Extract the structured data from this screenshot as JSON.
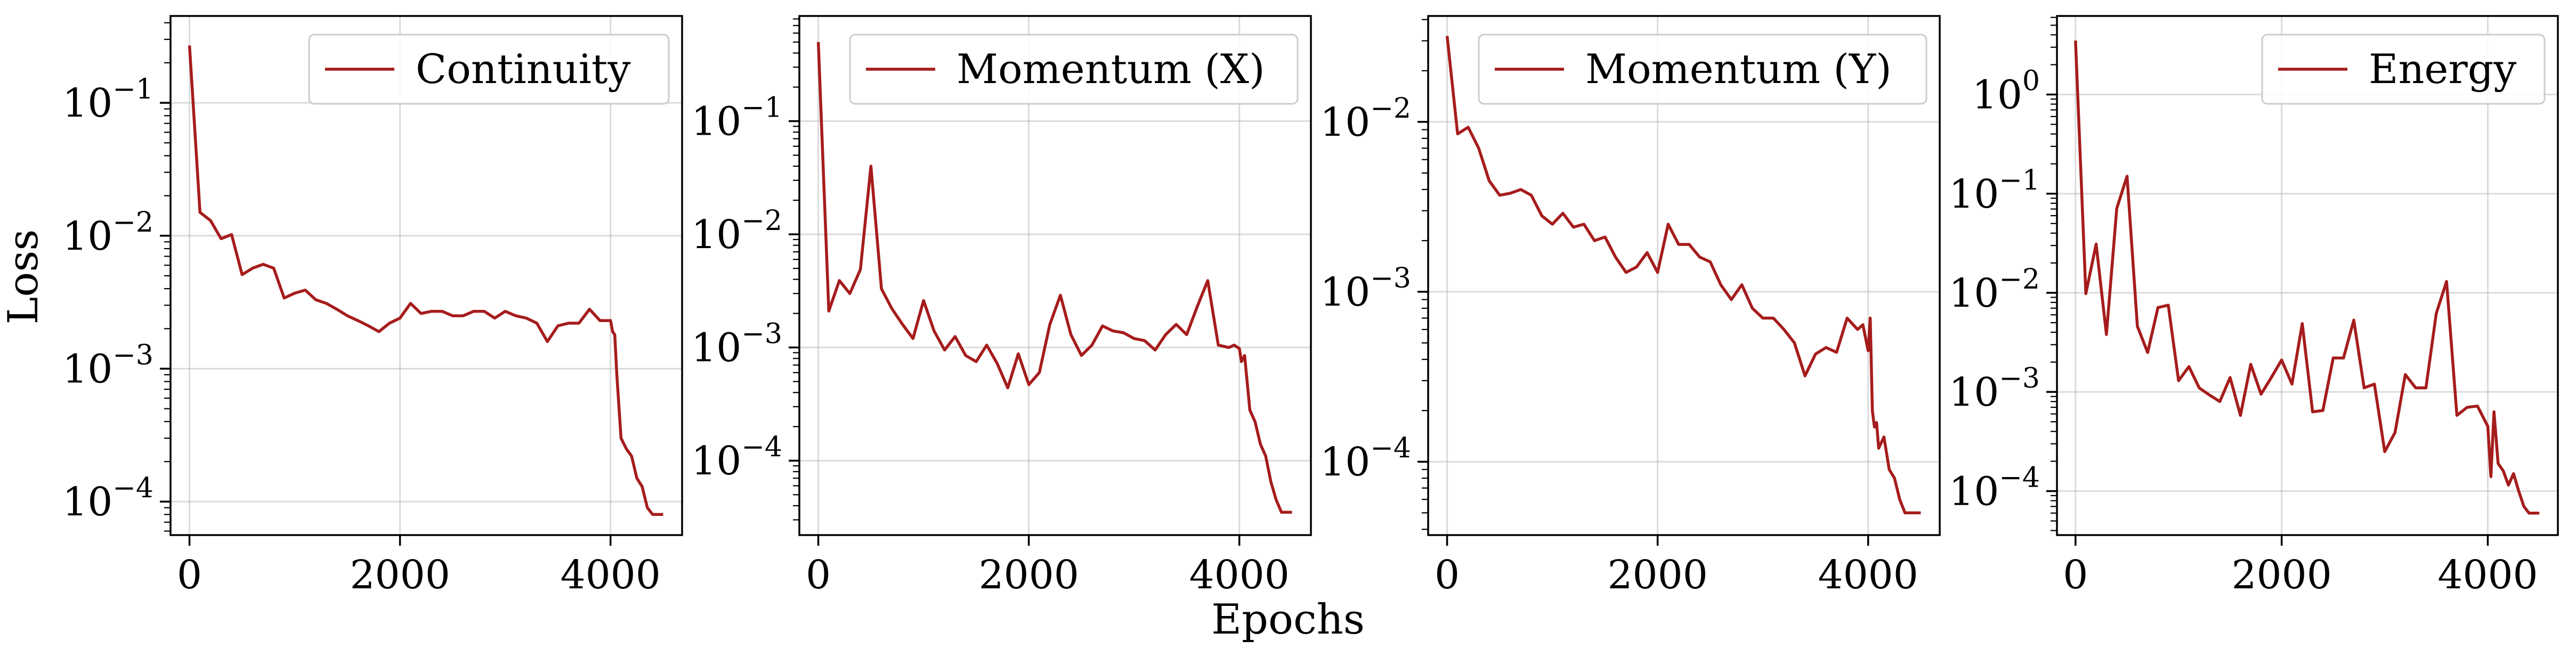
{
  "figure": {
    "xlabel": "Epochs",
    "ylabel": "Loss",
    "line_color": "#a61c1c"
  },
  "chart_data": [
    {
      "type": "line",
      "xscale": "linear",
      "yscale": "log",
      "xlim": [
        -180,
        4680
      ],
      "ylim": [
        5.6e-05,
        0.45
      ],
      "xticks": [
        0,
        2000,
        4000
      ],
      "yticks": [
        0.0001,
        0.001,
        0.01,
        0.1
      ],
      "ytick_labels": [
        [
          "10",
          "−4"
        ],
        [
          "10",
          "−3"
        ],
        [
          "10",
          "−2"
        ],
        [
          "10",
          "−1"
        ]
      ],
      "grid": true,
      "legend_position": "top-right",
      "series": [
        {
          "name": "Continuity",
          "x": [
            0,
            100,
            200,
            300,
            400,
            500,
            600,
            700,
            800,
            900,
            1000,
            1100,
            1200,
            1300,
            1400,
            1500,
            1600,
            1700,
            1800,
            1900,
            2000,
            2100,
            2200,
            2300,
            2400,
            2500,
            2600,
            2700,
            2800,
            2900,
            3000,
            3100,
            3200,
            3300,
            3400,
            3500,
            3600,
            3700,
            3800,
            3900,
            3950,
            4000,
            4020,
            4040,
            4060,
            4100,
            4150,
            4200,
            4250,
            4300,
            4350,
            4400,
            4500
          ],
          "y": [
            0.27,
            0.015,
            0.013,
            0.0095,
            0.0102,
            0.0051,
            0.0057,
            0.0061,
            0.0057,
            0.0034,
            0.0037,
            0.0039,
            0.0033,
            0.0031,
            0.0028,
            0.0025,
            0.0023,
            0.0021,
            0.0019,
            0.0022,
            0.0024,
            0.0031,
            0.0026,
            0.0027,
            0.0027,
            0.0025,
            0.0025,
            0.0027,
            0.0027,
            0.0024,
            0.0027,
            0.0025,
            0.0024,
            0.0022,
            0.0016,
            0.0021,
            0.0022,
            0.0022,
            0.0028,
            0.0023,
            0.0023,
            0.0023,
            0.0019,
            0.0018,
            0.0009,
            0.0003,
            0.00025,
            0.00022,
            0.00015,
            0.00013,
            9e-05,
            8e-05,
            8e-05
          ]
        }
      ]
    },
    {
      "type": "line",
      "xscale": "linear",
      "yscale": "log",
      "xlim": [
        -180,
        4680
      ],
      "ylim": [
        2.2e-05,
        0.85
      ],
      "xticks": [
        0,
        2000,
        4000
      ],
      "yticks": [
        0.0001,
        0.001,
        0.01,
        0.1
      ],
      "ytick_labels": [
        [
          "10",
          "−4"
        ],
        [
          "10",
          "−3"
        ],
        [
          "10",
          "−2"
        ],
        [
          "10",
          "−1"
        ]
      ],
      "grid": true,
      "legend_position": "top-right",
      "series": [
        {
          "name": "Momentum (X)",
          "x": [
            0,
            100,
            200,
            300,
            400,
            500,
            600,
            700,
            800,
            900,
            1000,
            1100,
            1200,
            1300,
            1400,
            1500,
            1600,
            1700,
            1800,
            1900,
            2000,
            2100,
            2200,
            2300,
            2400,
            2500,
            2600,
            2700,
            2800,
            2900,
            3000,
            3100,
            3200,
            3300,
            3400,
            3500,
            3600,
            3700,
            3800,
            3900,
            3950,
            4000,
            4020,
            4050,
            4100,
            4150,
            4200,
            4250,
            4300,
            4350,
            4400,
            4500
          ],
          "y": [
            0.5,
            0.0021,
            0.0039,
            0.003,
            0.0049,
            0.04,
            0.0033,
            0.0022,
            0.0016,
            0.0012,
            0.0026,
            0.0014,
            0.00095,
            0.00125,
            0.00085,
            0.00075,
            0.00105,
            0.00072,
            0.00044,
            0.00088,
            0.00047,
            0.0006,
            0.0016,
            0.0029,
            0.0013,
            0.00085,
            0.00105,
            0.00155,
            0.0014,
            0.00135,
            0.0012,
            0.00115,
            0.00095,
            0.0013,
            0.0016,
            0.0013,
            0.0023,
            0.0039,
            0.00105,
            0.001,
            0.00105,
            0.00098,
            0.00075,
            0.00085,
            0.00028,
            0.00022,
            0.00014,
            0.00011,
            6.5e-05,
            4.5e-05,
            3.5e-05,
            3.5e-05
          ]
        }
      ]
    },
    {
      "type": "line",
      "xscale": "linear",
      "yscale": "log",
      "xlim": [
        -180,
        4680
      ],
      "ylim": [
        3.7e-05,
        0.042
      ],
      "xticks": [
        0,
        2000,
        4000
      ],
      "yticks": [
        0.0001,
        0.001,
        0.01
      ],
      "ytick_labels": [
        [
          "10",
          "−4"
        ],
        [
          "10",
          "−3"
        ],
        [
          "10",
          "−2"
        ]
      ],
      "grid": true,
      "legend_position": "top-right",
      "series": [
        {
          "name": "Momentum (Y)",
          "x": [
            0,
            100,
            200,
            300,
            400,
            500,
            600,
            700,
            800,
            900,
            1000,
            1100,
            1200,
            1300,
            1400,
            1500,
            1600,
            1700,
            1800,
            1900,
            2000,
            2100,
            2200,
            2300,
            2400,
            2500,
            2600,
            2700,
            2800,
            2900,
            3000,
            3100,
            3200,
            3300,
            3400,
            3500,
            3600,
            3700,
            3800,
            3900,
            3950,
            4000,
            4020,
            4040,
            4060,
            4080,
            4100,
            4150,
            4200,
            4250,
            4300,
            4350,
            4400,
            4500
          ],
          "y": [
            0.032,
            0.0085,
            0.0093,
            0.007,
            0.0045,
            0.0037,
            0.0038,
            0.004,
            0.0037,
            0.0028,
            0.0025,
            0.0029,
            0.0024,
            0.0025,
            0.002,
            0.0021,
            0.0016,
            0.0013,
            0.0014,
            0.0017,
            0.0013,
            0.0025,
            0.0019,
            0.0019,
            0.0016,
            0.0015,
            0.0011,
            0.0009,
            0.0011,
            0.0008,
            0.0007,
            0.0007,
            0.0006,
            0.0005,
            0.00032,
            0.00043,
            0.00047,
            0.00044,
            0.0007,
            0.0006,
            0.00064,
            0.00045,
            0.0007,
            0.0002,
            0.00016,
            0.00017,
            0.00012,
            0.00014,
            9e-05,
            8e-05,
            6e-05,
            5e-05,
            5e-05,
            5e-05
          ]
        }
      ]
    },
    {
      "type": "line",
      "xscale": "linear",
      "yscale": "log",
      "xlim": [
        -180,
        4680
      ],
      "ylim": [
        3.6e-05,
        6.2
      ],
      "xticks": [
        0,
        2000,
        4000
      ],
      "yticks": [
        0.0001,
        0.001,
        0.01,
        0.1,
        1
      ],
      "ytick_labels": [
        [
          "10",
          "−4"
        ],
        [
          "10",
          "−3"
        ],
        [
          "10",
          "−2"
        ],
        [
          "10",
          "−1"
        ],
        [
          "10",
          "0"
        ]
      ],
      "grid": true,
      "legend_position": "top-right",
      "series": [
        {
          "name": "Energy",
          "x": [
            0,
            100,
            200,
            300,
            400,
            500,
            600,
            700,
            800,
            900,
            1000,
            1100,
            1200,
            1300,
            1400,
            1500,
            1600,
            1700,
            1800,
            1900,
            2000,
            2100,
            2200,
            2300,
            2400,
            2500,
            2600,
            2700,
            2800,
            2900,
            3000,
            3100,
            3200,
            3300,
            3400,
            3500,
            3600,
            3700,
            3800,
            3900,
            4000,
            4030,
            4060,
            4100,
            4150,
            4200,
            4250,
            4300,
            4350,
            4400,
            4500
          ],
          "y": [
            3.5,
            0.0098,
            0.031,
            0.0038,
            0.071,
            0.15,
            0.0046,
            0.0025,
            0.0071,
            0.0075,
            0.0013,
            0.0018,
            0.0011,
            0.00093,
            0.0008,
            0.0014,
            0.00058,
            0.0019,
            0.00095,
            0.0014,
            0.0021,
            0.0012,
            0.0049,
            0.00063,
            0.00065,
            0.0022,
            0.0022,
            0.0053,
            0.0011,
            0.0012,
            0.00025,
            0.00039,
            0.0015,
            0.0011,
            0.0011,
            0.0062,
            0.013,
            0.00058,
            0.0007,
            0.00072,
            0.00045,
            0.00014,
            0.00063,
            0.00019,
            0.00016,
            0.000115,
            0.00015,
            0.0001,
            7e-05,
            6e-05,
            6e-05
          ]
        }
      ]
    }
  ]
}
